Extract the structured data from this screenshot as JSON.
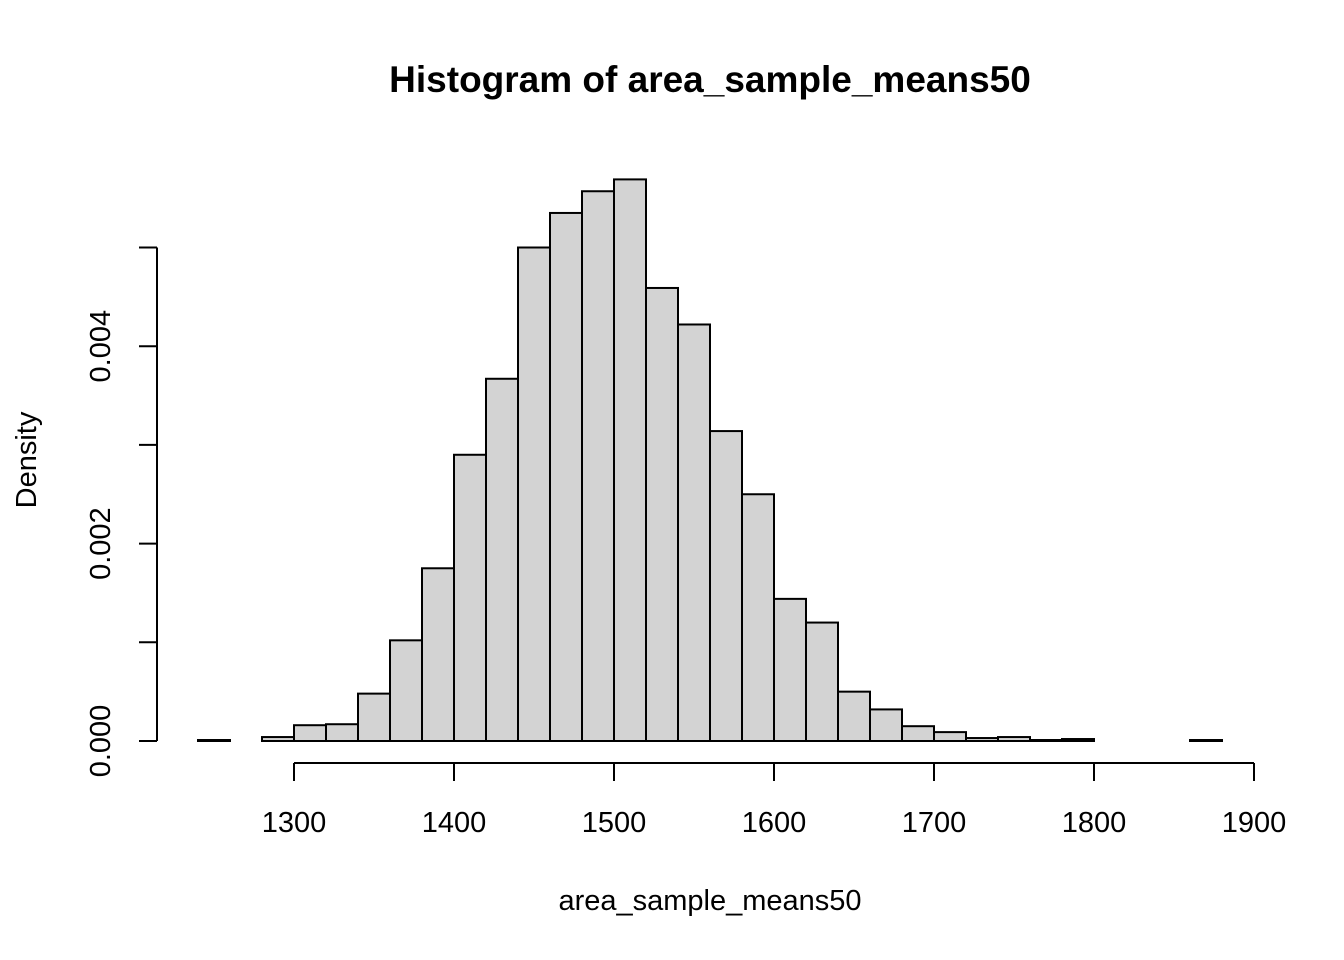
{
  "chart_data": {
    "type": "bar",
    "title": "Histogram of area_sample_means50",
    "xlabel": "area_sample_means50",
    "ylabel": "Density",
    "xlim": [
      1240,
      1880
    ],
    "ylim": [
      0,
      0.0056
    ],
    "x_ticks": [
      1300,
      1400,
      1500,
      1600,
      1700,
      1800,
      1900
    ],
    "x_tick_labels": [
      "1300",
      "1400",
      "1500",
      "1600",
      "1700",
      "1800",
      "1900"
    ],
    "y_ticks": [
      0,
      0.001,
      0.002,
      0.003,
      0.004,
      0.005
    ],
    "y_tick_labels": [
      "0.000",
      "",
      "0.002",
      "",
      "0.004",
      ""
    ],
    "bin_edges": [
      1240,
      1260,
      1280,
      1300,
      1320,
      1340,
      1360,
      1380,
      1400,
      1420,
      1440,
      1460,
      1480,
      1500,
      1520,
      1540,
      1560,
      1580,
      1600,
      1620,
      1640,
      1660,
      1680,
      1700,
      1720,
      1740,
      1760,
      1780,
      1800,
      1820,
      1840,
      1860,
      1880
    ],
    "values": [
      1e-05,
      0.0,
      4e-05,
      0.00016,
      0.00017,
      0.00048,
      0.00102,
      0.00175,
      0.0029,
      0.00367,
      0.005,
      0.00535,
      0.00557,
      0.00569,
      0.00459,
      0.00422,
      0.00314,
      0.0025,
      0.00144,
      0.0012,
      0.0005,
      0.00032,
      0.00015,
      9e-05,
      3e-05,
      4e-05,
      1e-05,
      2e-05,
      0.0,
      0.0,
      0.0,
      1e-05
    ],
    "bar_fill": "#d3d3d3",
    "bar_stroke": "#000000",
    "grid": false,
    "legend": "none"
  }
}
